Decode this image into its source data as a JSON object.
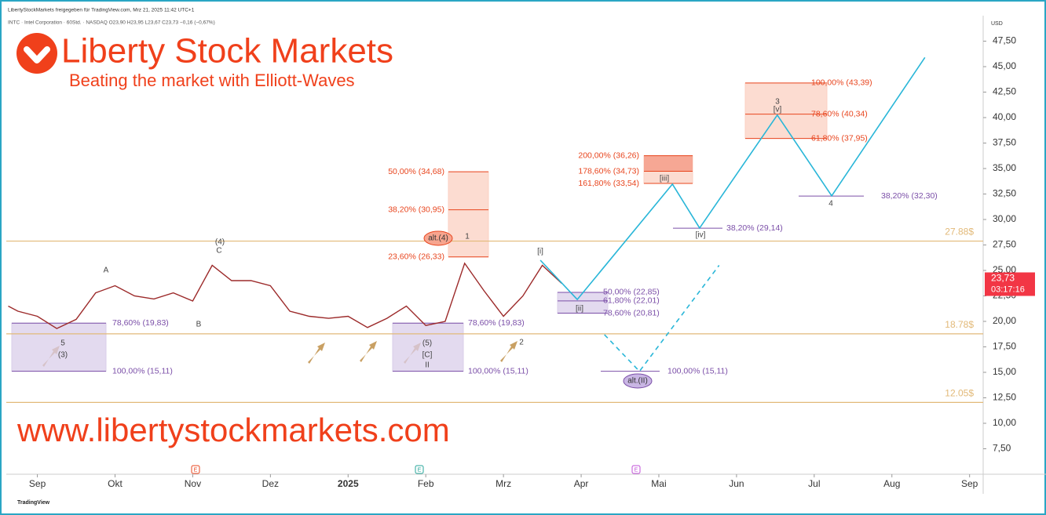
{
  "chart_data": {
    "type": "line",
    "title": "Liberty Stock Markets",
    "subtitle": "Beating the market with Elliott-Waves",
    "url": "www.libertystockmarkets.com",
    "header": "LibertyStockMarkets freigegeben für TradingView.com, Mrz 21, 2025 11:42 UTC+1",
    "symbol_line": "INTC · Intel Corporation · 60Std. · NASDAQ  O23,90 H23,95 L23,67 C23,73 −0,16 (−0,67%)",
    "currency": "USD",
    "footer": "TradingView",
    "xlim": [
      -0.6,
      49.7
    ],
    "ylim": [
      5,
      50
    ],
    "xticks": [
      {
        "value": 1,
        "label": "Sep"
      },
      {
        "value": 5,
        "label": "Okt"
      },
      {
        "value": 9,
        "label": "Nov"
      },
      {
        "value": 13,
        "label": "Dez"
      },
      {
        "value": 17,
        "label": "2025"
      },
      {
        "value": 21,
        "label": "Feb"
      },
      {
        "value": 25,
        "label": "Mrz"
      },
      {
        "value": 29,
        "label": "Apr"
      },
      {
        "value": 33,
        "label": "Mai"
      },
      {
        "value": 37,
        "label": "Jun"
      },
      {
        "value": 41,
        "label": "Jul"
      },
      {
        "value": 45,
        "label": "Aug"
      },
      {
        "value": 49,
        "label": "Sep"
      }
    ],
    "yticks": [
      {
        "value": 7.5,
        "label": "7,50"
      },
      {
        "value": 10,
        "label": "10,00"
      },
      {
        "value": 12.5,
        "label": "12,50"
      },
      {
        "value": 15,
        "label": "15,00"
      },
      {
        "value": 17.5,
        "label": "17,50"
      },
      {
        "value": 20,
        "label": "20,00"
      },
      {
        "value": 22.5,
        "label": "22,50"
      },
      {
        "value": 25,
        "label": "25,00"
      },
      {
        "value": 27.5,
        "label": "27,50"
      },
      {
        "value": 30,
        "label": "30,00"
      },
      {
        "value": 32.5,
        "label": "32,50"
      },
      {
        "value": 35,
        "label": "35,00"
      },
      {
        "value": 37.5,
        "label": "37,50"
      },
      {
        "value": 40,
        "label": "40,00"
      },
      {
        "value": 42.5,
        "label": "42,50"
      },
      {
        "value": 45,
        "label": "45,00"
      },
      {
        "value": 47.5,
        "label": "47,50"
      }
    ],
    "series": [
      {
        "color": "#9c2a2a",
        "x": [
          -0.5,
          0,
          1,
          2,
          3,
          4,
          5,
          6,
          7,
          8,
          9,
          10,
          11,
          12,
          13,
          14,
          15,
          16,
          17,
          18,
          19,
          20,
          21,
          22,
          23,
          24,
          25,
          26,
          27,
          28
        ],
        "values": [
          21.5,
          21,
          20.5,
          19.3,
          20.2,
          22.8,
          23.5,
          22.5,
          22.2,
          22.8,
          22,
          25.5,
          24,
          24,
          23.5,
          21,
          20.5,
          20.3,
          20.5,
          19.4,
          20.3,
          21.5,
          19.6,
          20,
          25.7,
          23,
          20.5,
          22.5,
          25.5,
          23.73
        ]
      },
      {
        "color": "#29b6d8",
        "x": [
          26.9,
          28.8,
          33.7,
          35.1,
          39.1,
          41.9,
          46.7
        ],
        "values": [
          26.0,
          22.15,
          33.47,
          29.16,
          40.25,
          32.32,
          45.9
        ]
      },
      {
        "color": "#29b6d8",
        "dashed": true,
        "x": [
          30.2,
          32,
          36.1
        ],
        "values": [
          18.7,
          15.1,
          25.5
        ]
      }
    ],
    "levels": [
      {
        "value": 27.88,
        "label": "27.88$"
      },
      {
        "value": 18.78,
        "label": "18.78$"
      },
      {
        "value": 12.05,
        "label": "12.05$"
      }
    ],
    "level_color": "#e2b978",
    "last_price": {
      "value": 23.73,
      "label": "23,73",
      "timer": "03:17:16",
      "color": "#f23645"
    },
    "zones": [
      {
        "top": 19.83,
        "bottom": 15.11,
        "color": "#d9cdea"
      },
      {
        "top": 19.83,
        "bottom": 15.11,
        "color": "#d9cdea"
      },
      {
        "top": 34.68,
        "bottom": 26.33,
        "color": "#fbd0c2"
      },
      {
        "top": 22.85,
        "bottom": 20.81,
        "color": "#d9cdea"
      },
      {
        "top": 36.26,
        "bottom": 33.54,
        "color": "#fbd0c2"
      },
      {
        "top": 43.39,
        "bottom": 37.95,
        "color": "#fbd0c2"
      }
    ],
    "fib_labels": [
      {
        "value": 19.83,
        "label": "78,60% (19,83)",
        "color": "#7b4fa8"
      },
      {
        "value": 15.11,
        "label": "100,00% (15,11)",
        "color": "#7b4fa8"
      },
      {
        "value": 19.83,
        "label": "78,60% (19,83)",
        "color": "#7b4fa8"
      },
      {
        "value": 15.11,
        "label": "100,00% (15,11)",
        "color": "#7b4fa8"
      },
      {
        "value": 34.68,
        "label": "50,00% (34,68)",
        "color": "#e8451e"
      },
      {
        "value": 30.95,
        "label": "38,20% (30,95)",
        "color": "#e8451e"
      },
      {
        "value": 26.33,
        "label": "23,60% (26,33)",
        "color": "#e8451e"
      },
      {
        "value": 22.85,
        "label": "50,00% (22,85)",
        "color": "#7b4fa8"
      },
      {
        "value": 22.01,
        "label": "61,80% (22,01)",
        "color": "#7b4fa8"
      },
      {
        "value": 20.81,
        "label": "78,60% (20,81)",
        "color": "#7b4fa8"
      },
      {
        "value": 36.26,
        "label": "200,00% (36,26)",
        "color": "#e8451e"
      },
      {
        "value": 34.73,
        "label": "178,60% (34,73)",
        "color": "#e8451e"
      },
      {
        "value": 33.54,
        "label": "161,80% (33,54)",
        "color": "#e8451e"
      },
      {
        "value": 29.14,
        "label": "38,20% (29,14)",
        "color": "#7b4fa8"
      },
      {
        "value": 43.39,
        "label": "100,00% (43,39)",
        "color": "#e8451e"
      },
      {
        "value": 40.34,
        "label": "78,60% (40,34)",
        "color": "#e8451e"
      },
      {
        "value": 37.95,
        "label": "61,80% (37,95)",
        "color": "#e8451e"
      },
      {
        "value": 32.3,
        "label": "38,20% (32,30)",
        "color": "#7b4fa8"
      },
      {
        "value": 15.11,
        "label": "100,00% (15,11)",
        "color": "#7b4fa8"
      }
    ],
    "wave_labels": [
      "A",
      "(4)",
      "C",
      "B",
      "5",
      "(3)",
      "(5)",
      "[C]",
      "II",
      "1",
      "2",
      "[i]",
      "[ii]",
      "[iii]",
      "[iv]",
      "3",
      "[v]",
      "4"
    ],
    "badges": [
      "alt.(4)",
      "alt.(II)"
    ],
    "events": [
      "E",
      "E",
      "E"
    ]
  }
}
